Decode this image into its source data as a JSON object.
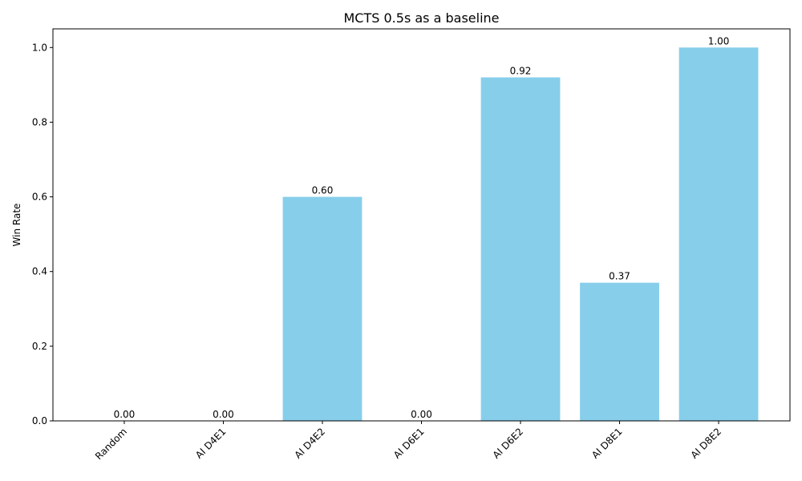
{
  "chart_data": {
    "type": "bar",
    "title": "MCTS 0.5s as a baseline",
    "xlabel": "",
    "ylabel": "Win Rate",
    "categories": [
      "Random",
      "AI D4E1",
      "AI D4E2",
      "AI D6E1",
      "AI D6E2",
      "AI D8E1",
      "AI D8E2"
    ],
    "values": [
      0.0,
      0.0,
      0.6,
      0.0,
      0.92,
      0.37,
      1.0
    ],
    "value_labels": [
      "0.00",
      "0.00",
      "0.60",
      "0.00",
      "0.92",
      "0.37",
      "1.00"
    ],
    "ylim": [
      0,
      1.05
    ],
    "yticks": [
      0.0,
      0.2,
      0.4,
      0.6,
      0.8,
      1.0
    ],
    "ytick_labels": [
      "0.0",
      "0.2",
      "0.4",
      "0.6",
      "0.8",
      "1.0"
    ],
    "bar_color": "#87ceeb",
    "grid": false,
    "xtick_rotation_deg": 45
  }
}
